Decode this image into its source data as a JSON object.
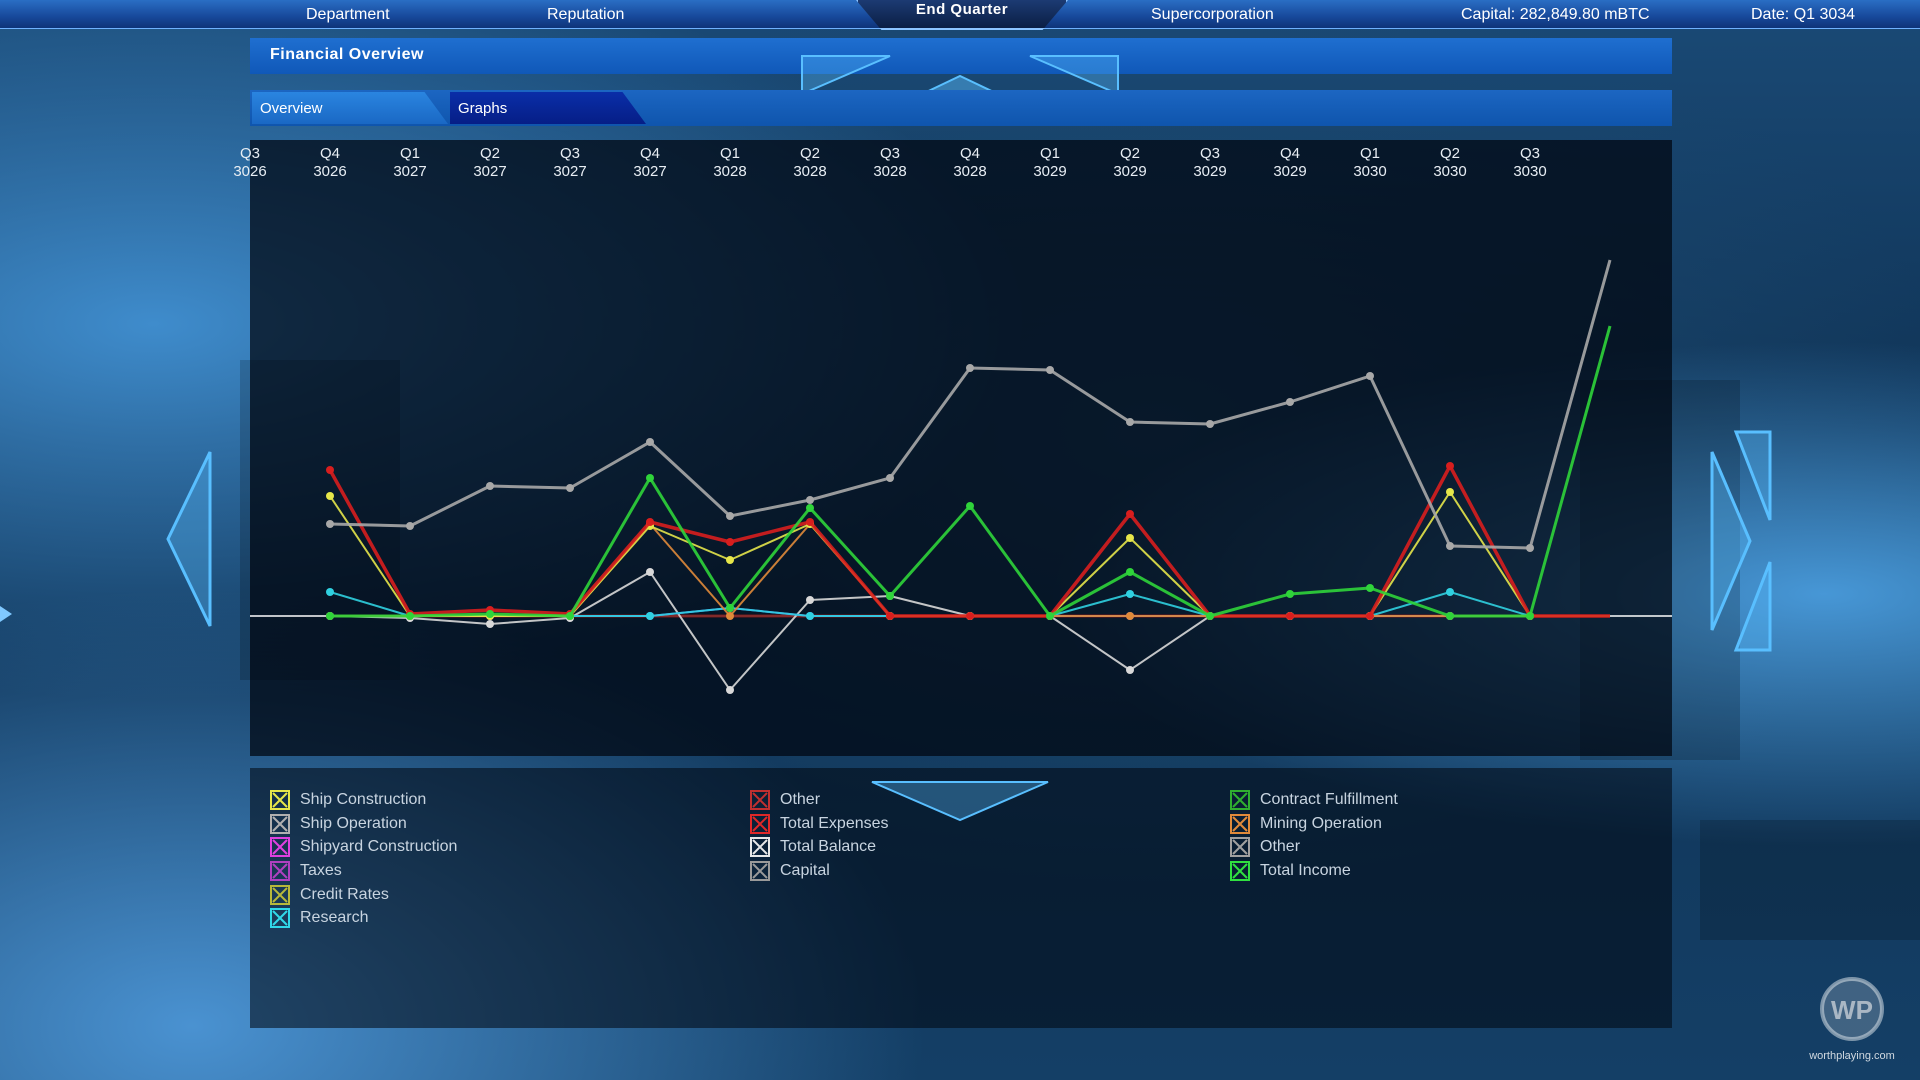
{
  "topbar": {
    "department": "Department",
    "reputation": "Reputation",
    "end_quarter": "End Quarter",
    "supercorporation": "Supercorporation",
    "capital": "Capital: 282,849.80 mBTC",
    "date": "Date: Q1 3034"
  },
  "panel": {
    "title": "Financial Overview",
    "tabs": [
      {
        "label": "Overview",
        "active": false
      },
      {
        "label": "Graphs",
        "active": true
      }
    ]
  },
  "watermark": "worthplaying.com",
  "legend": {
    "col1": [
      {
        "label": "Ship Construction",
        "color": "#e6e64a"
      },
      {
        "label": "Ship Operation",
        "color": "#b0b0b0"
      },
      {
        "label": "Shipyard Construction",
        "color": "#e040e0"
      },
      {
        "label": "Taxes",
        "color": "#b040c0"
      },
      {
        "label": "Credit Rates",
        "color": "#b8b83a"
      },
      {
        "label": "Research",
        "color": "#30d8e8"
      }
    ],
    "col2": [
      {
        "label": "Other",
        "color": "#c03030"
      },
      {
        "label": "Total Expenses",
        "color": "#e02828"
      },
      {
        "label": "Total Balance",
        "color": "#e8e8e8"
      },
      {
        "label": "Capital",
        "color": "#9a9a9a"
      }
    ],
    "col3": [
      {
        "label": "Contract Fulfillment",
        "color": "#30b030"
      },
      {
        "label": "Mining Operation",
        "color": "#e08a3a"
      },
      {
        "label": "Other",
        "color": "#a0a0a0"
      },
      {
        "label": "Total Income",
        "color": "#30e040"
      }
    ]
  },
  "chart_data": {
    "type": "line",
    "x_ticks": [
      {
        "q": "Q3",
        "y": "3026"
      },
      {
        "q": "Q4",
        "y": "3026"
      },
      {
        "q": "Q1",
        "y": "3027"
      },
      {
        "q": "Q2",
        "y": "3027"
      },
      {
        "q": "Q3",
        "y": "3027"
      },
      {
        "q": "Q4",
        "y": "3027"
      },
      {
        "q": "Q1",
        "y": "3028"
      },
      {
        "q": "Q2",
        "y": "3028"
      },
      {
        "q": "Q3",
        "y": "3028"
      },
      {
        "q": "Q4",
        "y": "3028"
      },
      {
        "q": "Q1",
        "y": "3029"
      },
      {
        "q": "Q2",
        "y": "3029"
      },
      {
        "q": "Q3",
        "y": "3029"
      },
      {
        "q": "Q4",
        "y": "3029"
      },
      {
        "q": "Q1",
        "y": "3030"
      },
      {
        "q": "Q2",
        "y": "3030"
      },
      {
        "q": "Q3",
        "y": "3030"
      }
    ],
    "ylim": [
      -72,
      362
    ],
    "grid": false,
    "series": [
      {
        "name": "Capital",
        "color": "#a8a8a8",
        "width": 3,
        "values": [
          null,
          92,
          90,
          130,
          128,
          174,
          100,
          116,
          138,
          248,
          246,
          194,
          192,
          214,
          240,
          70,
          68,
          356
        ]
      },
      {
        "name": "Total Income",
        "color": "#2fd43a",
        "width": 3,
        "values": [
          null,
          0,
          0,
          2,
          0,
          138,
          8,
          108,
          20,
          110,
          0,
          44,
          0,
          22,
          28,
          0,
          0,
          290
        ]
      },
      {
        "name": "Total Expenses",
        "color": "#d81e1e",
        "width": 3.5,
        "values": [
          null,
          146,
          2,
          6,
          2,
          94,
          74,
          94,
          0,
          0,
          0,
          102,
          0,
          0,
          0,
          150,
          0,
          0
        ]
      },
      {
        "name": "Ship Construction",
        "color": "#e6e64a",
        "width": 2,
        "values": [
          null,
          120,
          0,
          0,
          0,
          90,
          56,
          92,
          0,
          0,
          0,
          78,
          0,
          0,
          0,
          124,
          0,
          0
        ]
      },
      {
        "name": "Mining Operation",
        "color": "#e08a3a",
        "width": 2,
        "values": [
          null,
          0,
          0,
          0,
          0,
          92,
          0,
          92,
          0,
          0,
          0,
          0,
          0,
          0,
          0,
          0,
          0,
          0
        ]
      },
      {
        "name": "Research",
        "color": "#30d0e0",
        "width": 2,
        "values": [
          null,
          24,
          0,
          0,
          0,
          0,
          8,
          0,
          0,
          0,
          0,
          22,
          0,
          0,
          0,
          24,
          0,
          0
        ]
      },
      {
        "name": "Shipyard Construction",
        "color": "#5a78ff",
        "width": 2,
        "values": [
          null,
          0,
          0,
          0,
          0,
          0,
          8,
          0,
          0,
          0,
          0,
          0,
          0,
          0,
          0,
          0,
          0,
          0
        ]
      },
      {
        "name": "Total Balance",
        "color": "#d8d8d8",
        "width": 2,
        "values": [
          null,
          0,
          -2,
          -8,
          -2,
          44,
          -74,
          16,
          20,
          0,
          0,
          -54,
          0,
          0,
          0,
          0,
          0,
          0
        ]
      },
      {
        "name": "Other",
        "color": "#7a1a1a",
        "width": 3,
        "values": [
          null,
          0,
          0,
          0,
          0,
          0,
          0,
          0,
          0,
          0,
          0,
          0,
          0,
          0,
          0,
          0,
          0,
          0
        ]
      }
    ]
  }
}
